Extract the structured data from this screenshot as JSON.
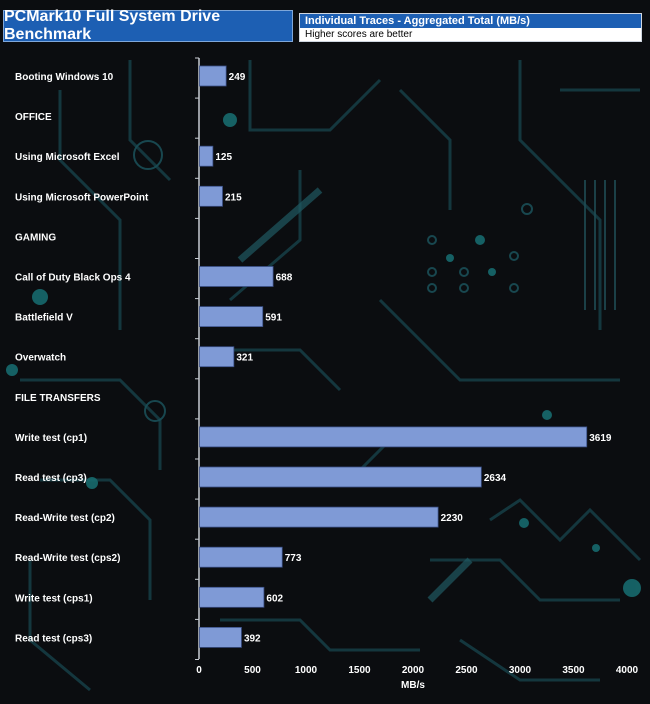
{
  "header": {
    "title": "PCMark10 Full System Drive Benchmark",
    "legend_label": "Individual Traces - Aggregated Total (MB/s)",
    "legend_note": "Higher scores are better"
  },
  "colors": {
    "bar": "#7f9ad6",
    "bar_border": "#3a4f86",
    "title_bg": "#1d5fb3",
    "text": "#ffffff"
  },
  "chart_data": {
    "type": "bar",
    "orientation": "horizontal",
    "categories": [
      "Booting Windows 10",
      "OFFICE",
      "Using Microsoft Excel",
      "Using Microsoft PowerPoint",
      "GAMING",
      "Call of Duty Black Ops 4",
      "Battlefield V",
      "Overwatch",
      "FILE TRANSFERS",
      "Write test (cp1)",
      "Read test (cp3)",
      "Read-Write test (cp2)",
      "Read-Write test (cps2)",
      "Write test (cps1)",
      "Read test (cps3)"
    ],
    "series": [
      {
        "name": "Individual Traces - Aggregated Total (MB/s)",
        "values": [
          249,
          null,
          125,
          215,
          null,
          688,
          591,
          321,
          null,
          3619,
          2634,
          2230,
          773,
          602,
          392
        ]
      }
    ],
    "xlabel": "MB/s",
    "ylabel": "",
    "xlim": [
      0,
      4000
    ],
    "xticks": [
      0,
      500,
      1000,
      1500,
      2000,
      2500,
      3000,
      3500,
      4000
    ],
    "grid": false,
    "legend": "top-right"
  }
}
